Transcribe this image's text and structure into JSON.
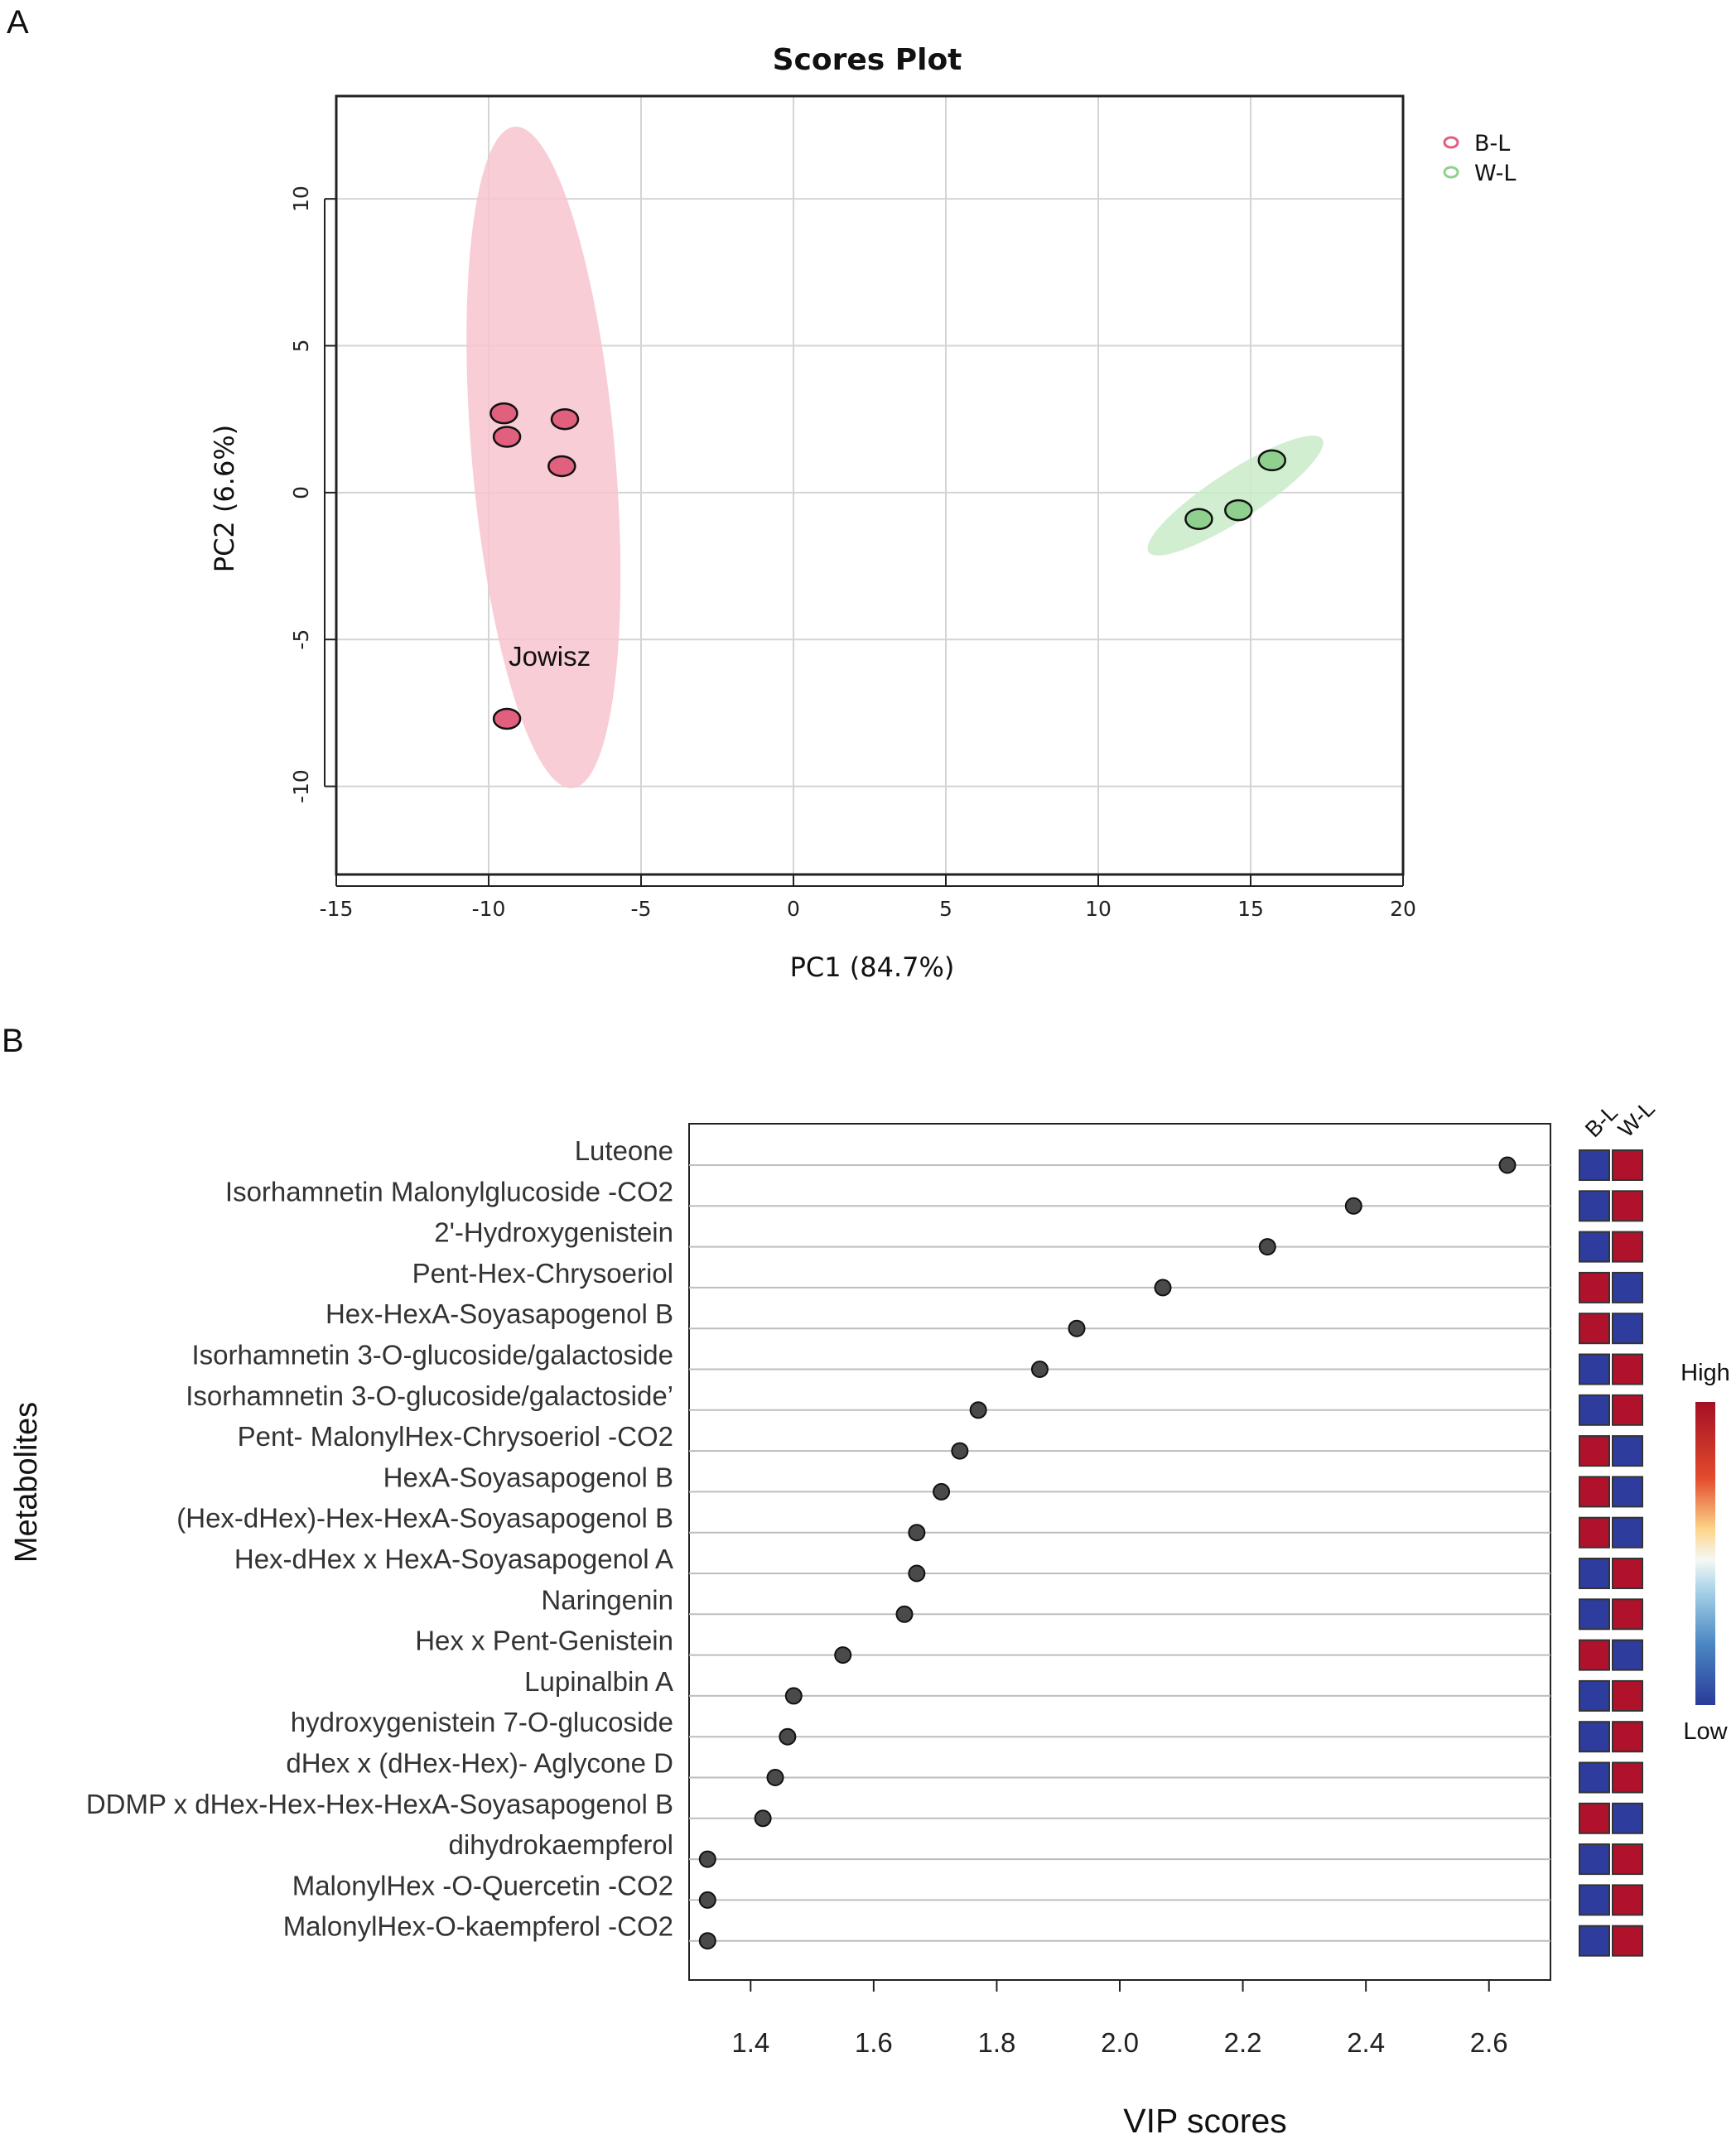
{
  "panels": {
    "a_label": "A",
    "b_label": "B"
  },
  "chart_data": [
    {
      "type": "scatter",
      "title": "Scores Plot",
      "xlabel": "PC1 (84.7%)",
      "ylabel": "PC2 (6.6%)",
      "xlim": [
        -15,
        20
      ],
      "ylim": [
        -13,
        13.5
      ],
      "xticks": [
        -15,
        -10,
        -5,
        0,
        5,
        10,
        15,
        20
      ],
      "yticks": [
        -10,
        -5,
        0,
        5,
        10
      ],
      "xtick_labels": [
        "-15",
        "-10",
        "-5",
        "0",
        "5",
        "10",
        "15",
        "20"
      ],
      "ytick_labels": [
        "-10",
        "-5",
        "0",
        "5",
        "10"
      ],
      "grid": true,
      "legend_position": "top-right",
      "annotation": {
        "text": "Jowisz",
        "x": -8,
        "y": -5.9
      },
      "series": [
        {
          "name": "B-L",
          "color": "#E0607E",
          "ellipse_color": "#F7C4CF",
          "points": [
            [
              -9.5,
              2.7
            ],
            [
              -7.5,
              2.5
            ],
            [
              -9.4,
              1.9
            ],
            [
              -7.6,
              0.9
            ],
            [
              -9.4,
              -7.7
            ]
          ],
          "ellipse": {
            "cx": -8.2,
            "cy": 1.2,
            "rx": 2.35,
            "ry": 11.3,
            "rotation_deg": 5
          }
        },
        {
          "name": "W-L",
          "color": "#8FD08F",
          "ellipse_color": "#C9EBC9",
          "points": [
            [
              15.7,
              1.1
            ],
            [
              14.6,
              -0.6
            ],
            [
              13.3,
              -0.9
            ]
          ],
          "ellipse": {
            "cx": 14.5,
            "cy": -0.1,
            "rx": 3.4,
            "ry": 0.82,
            "rotation_deg": 33
          }
        }
      ]
    },
    {
      "type": "scatter",
      "title": "",
      "xlabel": "VIP scores",
      "ylabel": "Metabolites",
      "xlim": [
        1.3,
        2.7
      ],
      "xticks": [
        1.4,
        1.6,
        1.8,
        2.0,
        2.2,
        2.4,
        2.6
      ],
      "xtick_labels": [
        "1.4",
        "1.6",
        "1.8",
        "2.0",
        "2.2",
        "2.4",
        "2.6"
      ],
      "heatmap_columns": [
        "B-L",
        "W-L"
      ],
      "heatmap_scale": {
        "high_label": "High",
        "low_label": "Low",
        "high_color": "#B1122B",
        "low_color": "#2E3C9E"
      },
      "metabolites": [
        {
          "name": "Luteone",
          "vip": 2.63,
          "b_l": "low",
          "w_l": "high"
        },
        {
          "name": "Isorhamnetin Malonylglucoside -CO2",
          "vip": 2.38,
          "b_l": "low",
          "w_l": "high"
        },
        {
          "name": "2'-Hydroxygenistein",
          "vip": 2.24,
          "b_l": "low",
          "w_l": "high"
        },
        {
          "name": "Pent-Hex-Chrysoeriol",
          "vip": 2.07,
          "b_l": "high",
          "w_l": "low"
        },
        {
          "name": "Hex-HexA-Soyasapogenol B",
          "vip": 1.93,
          "b_l": "high",
          "w_l": "low"
        },
        {
          "name": "Isorhamnetin 3-O-glucoside/galactoside",
          "vip": 1.87,
          "b_l": "low",
          "w_l": "high"
        },
        {
          "name": "Isorhamnetin 3-O-glucoside/galactoside’",
          "vip": 1.77,
          "b_l": "low",
          "w_l": "high"
        },
        {
          "name": "Pent- MalonylHex-Chrysoeriol -CO2",
          "vip": 1.74,
          "b_l": "high",
          "w_l": "low"
        },
        {
          "name": "HexA-Soyasapogenol B",
          "vip": 1.71,
          "b_l": "high",
          "w_l": "low"
        },
        {
          "name": "(Hex-dHex)-Hex-HexA-Soyasapogenol B",
          "vip": 1.67,
          "b_l": "high",
          "w_l": "low"
        },
        {
          "name": "Hex-dHex x HexA-Soyasapogenol A",
          "vip": 1.67,
          "b_l": "low",
          "w_l": "high"
        },
        {
          "name": "Naringenin",
          "vip": 1.65,
          "b_l": "low",
          "w_l": "high"
        },
        {
          "name": "Hex x Pent-Genistein",
          "vip": 1.55,
          "b_l": "high",
          "w_l": "low"
        },
        {
          "name": "Lupinalbin A",
          "vip": 1.47,
          "b_l": "low",
          "w_l": "high"
        },
        {
          "name": "hydroxygenistein 7-O-glucoside",
          "vip": 1.46,
          "b_l": "low",
          "w_l": "high"
        },
        {
          "name": "dHex x (dHex-Hex)- Aglycone D",
          "vip": 1.44,
          "b_l": "low",
          "w_l": "high"
        },
        {
          "name": "DDMP x dHex-Hex-Hex-HexA-Soyasapogenol B",
          "vip": 1.42,
          "b_l": "high",
          "w_l": "low"
        },
        {
          "name": "dihydrokaempferol",
          "vip": 1.33,
          "b_l": "low",
          "w_l": "high"
        },
        {
          "name": "MalonylHex -O-Quercetin -CO2",
          "vip": 1.33,
          "b_l": "low",
          "w_l": "high"
        },
        {
          "name": "MalonylHex-O-kaempferol -CO2",
          "vip": 1.33,
          "b_l": "low",
          "w_l": "high"
        }
      ]
    }
  ]
}
